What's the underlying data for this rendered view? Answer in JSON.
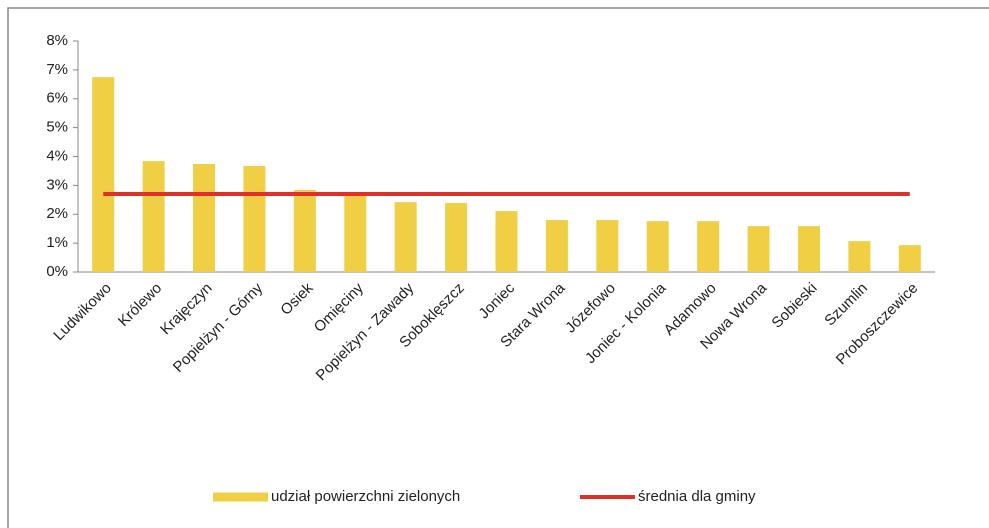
{
  "chart_data": {
    "type": "bar",
    "categories": [
      "Ludwikowo",
      "Królewo",
      "Krajęczyn",
      "Popielżyn - Górny",
      "Osiek",
      "Omięciny",
      "Popielżyn - Zawady",
      "Soboklęszcz",
      "Joniec",
      "Stara Wrona",
      "Józefowo",
      "Joniec - Kolonia",
      "Adamowo",
      "Nowa Wrona",
      "Sobieski",
      "Szumlin",
      "Proboszczewice"
    ],
    "series": [
      {
        "name": "udział powierzchni zielonych",
        "type": "bar",
        "color": "#f0cf45",
        "values": [
          6.75,
          3.84,
          3.74,
          3.67,
          2.84,
          2.7,
          2.42,
          2.39,
          2.11,
          1.8,
          1.8,
          1.76,
          1.76,
          1.59,
          1.59,
          1.07,
          0.93
        ]
      },
      {
        "name": "średnia dla gminy",
        "type": "line",
        "color": "#e0302a",
        "values": [
          2.7,
          2.7,
          2.7,
          2.7,
          2.7,
          2.7,
          2.7,
          2.7,
          2.7,
          2.7,
          2.7,
          2.7,
          2.7,
          2.7,
          2.7,
          2.7,
          2.7
        ]
      }
    ],
    "ylim": [
      0,
      8
    ],
    "yticks": [
      {
        "value": 0,
        "label": "0%"
      },
      {
        "value": 1,
        "label": "1%"
      },
      {
        "value": 2,
        "label": "2%"
      },
      {
        "value": 3,
        "label": "3%"
      },
      {
        "value": 4,
        "label": "4%"
      },
      {
        "value": 5,
        "label": "5%"
      },
      {
        "value": 6,
        "label": "6%"
      },
      {
        "value": 7,
        "label": "7%"
      },
      {
        "value": 8,
        "label": "8%"
      }
    ],
    "grid": false,
    "legend": "bottom"
  }
}
